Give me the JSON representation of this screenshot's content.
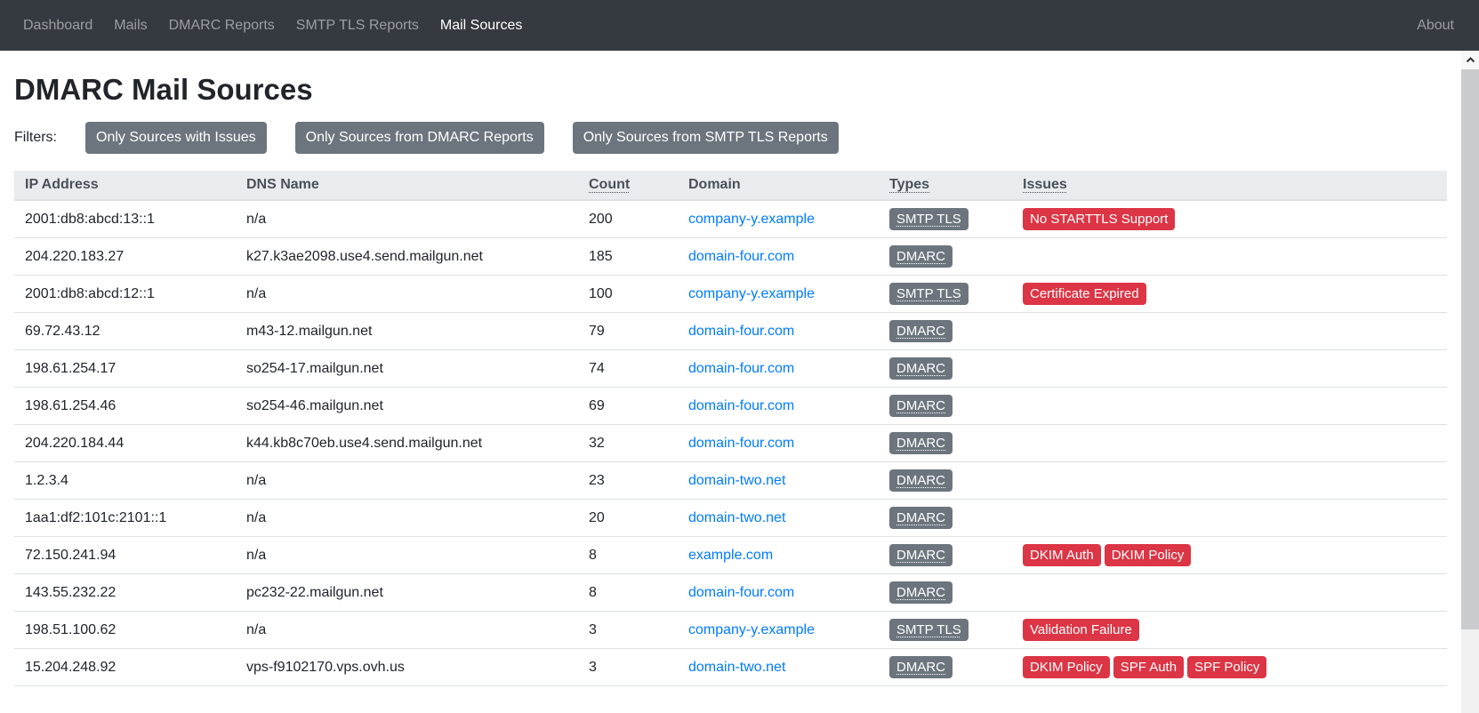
{
  "navbar": {
    "items": [
      {
        "label": "Dashboard",
        "active": false
      },
      {
        "label": "Mails",
        "active": false
      },
      {
        "label": "DMARC Reports",
        "active": false
      },
      {
        "label": "SMTP TLS Reports",
        "active": false
      },
      {
        "label": "Mail Sources",
        "active": true
      }
    ],
    "about_label": "About"
  },
  "page": {
    "title": "DMARC Mail Sources",
    "filters_label": "Filters:",
    "filter_buttons": [
      "Only Sources with Issues",
      "Only Sources from DMARC Reports",
      "Only Sources from SMTP TLS Reports"
    ]
  },
  "table": {
    "columns": [
      {
        "label": "IP Address",
        "sortable": false
      },
      {
        "label": "DNS Name",
        "sortable": false
      },
      {
        "label": "Count",
        "sortable": true
      },
      {
        "label": "Domain",
        "sortable": false
      },
      {
        "label": "Types",
        "sortable": true
      },
      {
        "label": "Issues",
        "sortable": true
      }
    ],
    "rows": [
      {
        "ip": "2001:db8:abcd:13::1",
        "dns": "n/a",
        "count": "200",
        "domain": "company-y.example",
        "types": [
          "SMTP TLS"
        ],
        "issues": [
          "No STARTTLS Support"
        ]
      },
      {
        "ip": "204.220.183.27",
        "dns": "k27.k3ae2098.use4.send.mailgun.net",
        "count": "185",
        "domain": "domain-four.com",
        "types": [
          "DMARC"
        ],
        "issues": []
      },
      {
        "ip": "2001:db8:abcd:12::1",
        "dns": "n/a",
        "count": "100",
        "domain": "company-y.example",
        "types": [
          "SMTP TLS"
        ],
        "issues": [
          "Certificate Expired"
        ]
      },
      {
        "ip": "69.72.43.12",
        "dns": "m43-12.mailgun.net",
        "count": "79",
        "domain": "domain-four.com",
        "types": [
          "DMARC"
        ],
        "issues": []
      },
      {
        "ip": "198.61.254.17",
        "dns": "so254-17.mailgun.net",
        "count": "74",
        "domain": "domain-four.com",
        "types": [
          "DMARC"
        ],
        "issues": []
      },
      {
        "ip": "198.61.254.46",
        "dns": "so254-46.mailgun.net",
        "count": "69",
        "domain": "domain-four.com",
        "types": [
          "DMARC"
        ],
        "issues": []
      },
      {
        "ip": "204.220.184.44",
        "dns": "k44.kb8c70eb.use4.send.mailgun.net",
        "count": "32",
        "domain": "domain-four.com",
        "types": [
          "DMARC"
        ],
        "issues": []
      },
      {
        "ip": "1.2.3.4",
        "dns": "n/a",
        "count": "23",
        "domain": "domain-two.net",
        "types": [
          "DMARC"
        ],
        "issues": []
      },
      {
        "ip": "1aa1:df2:101c:2101::1",
        "dns": "n/a",
        "count": "20",
        "domain": "domain-two.net",
        "types": [
          "DMARC"
        ],
        "issues": []
      },
      {
        "ip": "72.150.241.94",
        "dns": "n/a",
        "count": "8",
        "domain": "example.com",
        "types": [
          "DMARC"
        ],
        "issues": [
          "DKIM Auth",
          "DKIM Policy"
        ]
      },
      {
        "ip": "143.55.232.22",
        "dns": "pc232-22.mailgun.net",
        "count": "8",
        "domain": "domain-four.com",
        "types": [
          "DMARC"
        ],
        "issues": []
      },
      {
        "ip": "198.51.100.62",
        "dns": "n/a",
        "count": "3",
        "domain": "company-y.example",
        "types": [
          "SMTP TLS"
        ],
        "issues": [
          "Validation Failure"
        ]
      },
      {
        "ip": "15.204.248.92",
        "dns": "vps-f9102170.vps.ovh.us",
        "count": "3",
        "domain": "domain-two.net",
        "types": [
          "DMARC"
        ],
        "issues": [
          "DKIM Policy",
          "SPF Auth",
          "SPF Policy"
        ]
      }
    ]
  },
  "colors": {
    "navbar_bg": "#343a40",
    "nav_link": "#9a9da1",
    "nav_link_active": "#ffffff",
    "button_secondary": "#6c757d",
    "badge_type": "#6c757d",
    "badge_issue": "#dc3545",
    "link": "#007bff",
    "table_header_bg": "#e9ecef",
    "table_border": "#dee2e6",
    "muted_text": "#adb5bd"
  }
}
